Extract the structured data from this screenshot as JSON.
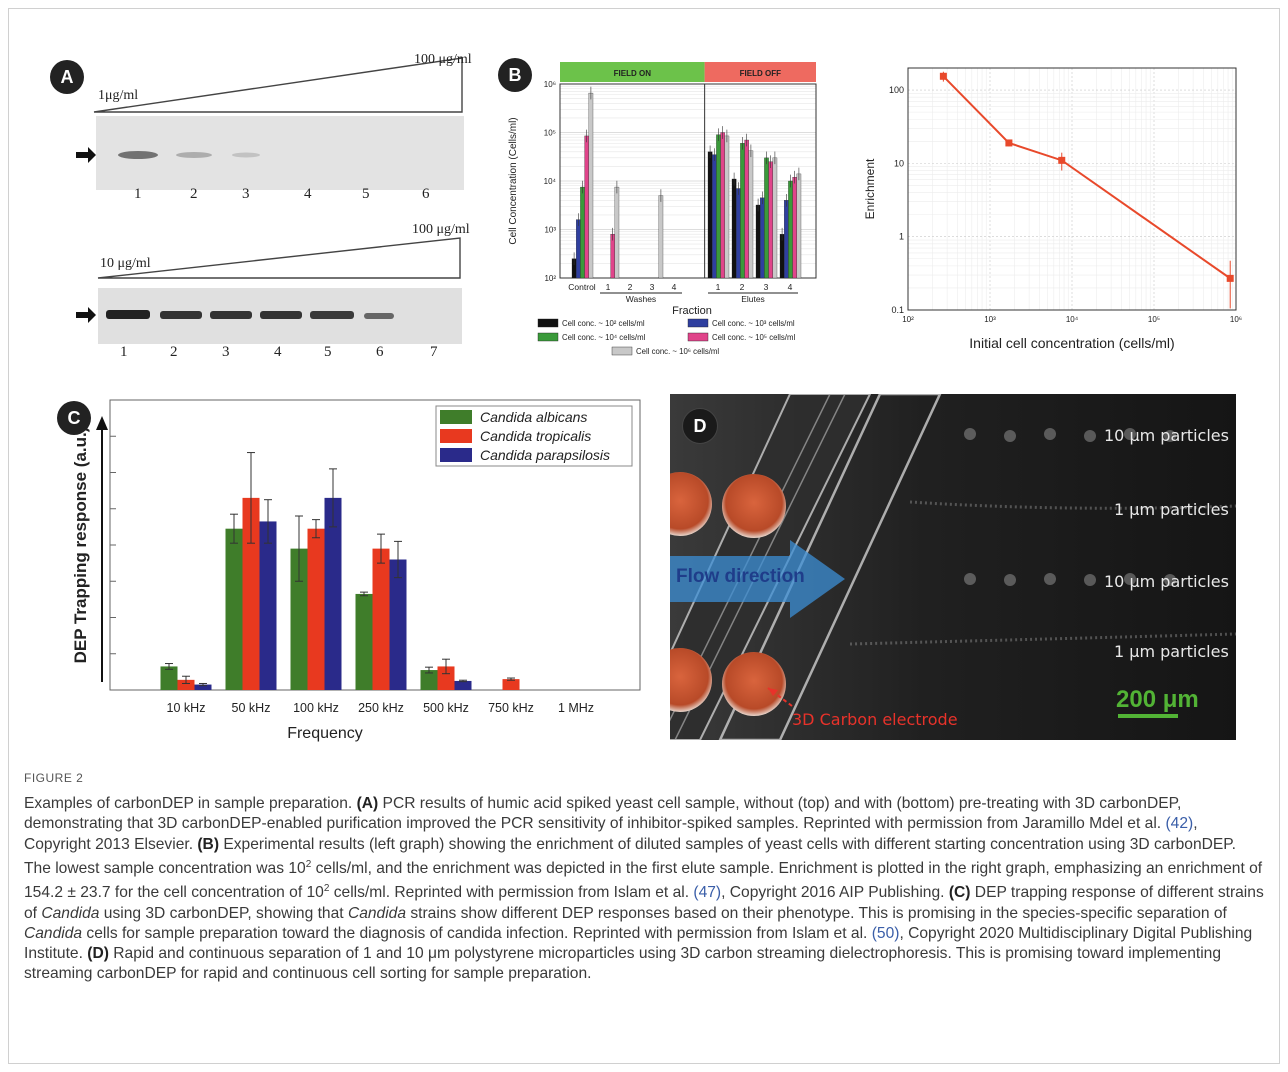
{
  "panelA": {
    "badge": "A",
    "top_low": "1μg/ml",
    "top_high": "100 μg/ml",
    "top_lanes": [
      "1",
      "2",
      "3",
      "4",
      "5",
      "6"
    ],
    "bottom_low": "10 μg/ml",
    "bottom_high": "100 μg/ml",
    "bottom_lanes": [
      "1",
      "2",
      "3",
      "4",
      "5",
      "6",
      "7"
    ]
  },
  "panelB": {
    "badge": "B",
    "field_on": "FIELD ON",
    "field_off": "FIELD OFF",
    "ylabel": "Cell Concentration (Cells/ml)",
    "xlabel": "Fraction",
    "group_washes": "Washes",
    "group_elutes": "Elutes",
    "control_label": "Control",
    "legend": [
      "Cell conc. ~ 10² cells/ml",
      "Cell conc. ~ 10³ cells/ml",
      "Cell conc. ~ 10⁴ cells/ml",
      "Cell conc. ~ 10⁵ cells/ml",
      "Cell conc. ~ 10⁶ cells/ml"
    ]
  },
  "panelD": {
    "badge": "D",
    "labels": [
      "10 μm particles",
      "1 μm particles",
      "10 μm particles",
      "1 μm particles"
    ],
    "flow": "Flow direction",
    "scale": "200 μm",
    "electrode": "3D Carbon electrode"
  },
  "chart_data": [
    {
      "id": "B-left",
      "type": "bar",
      "yscale": "log",
      "ylim": [
        100,
        1000000
      ],
      "yticks": [
        "10²",
        "10³",
        "10⁴",
        "10⁵",
        "10⁶"
      ],
      "categories": [
        "Control",
        "1",
        "2",
        "3",
        "4",
        "1",
        "2",
        "3",
        "4"
      ],
      "series": [
        {
          "values": [
            250,
            0,
            0,
            0,
            0,
            40000,
            11000,
            3200,
            800
          ],
          "color": "#111111"
        },
        {
          "values": [
            1600,
            0,
            0,
            0,
            0,
            35000,
            7000,
            4500,
            4000
          ],
          "color": "#2f3f9f"
        },
        {
          "values": [
            7500,
            0,
            0,
            0,
            0,
            90000,
            60000,
            30000,
            10000
          ],
          "color": "#3a9a3a"
        },
        {
          "values": [
            85000,
            800,
            0,
            0,
            0,
            100000,
            70000,
            25000,
            12000
          ],
          "color": "#e0448a"
        },
        {
          "values": [
            650000,
            7500,
            0,
            5000,
            0,
            85000,
            42000,
            30000,
            14000
          ],
          "color": "#c8c8c8"
        }
      ]
    },
    {
      "id": "B-right",
      "type": "line",
      "xscale": "log",
      "yscale": "log",
      "xlim": [
        100,
        1000000
      ],
      "ylim": [
        0.1,
        200
      ],
      "xticks": [
        "10²",
        "10³",
        "10⁴",
        "10⁵",
        "10⁶"
      ],
      "yticks": [
        "0.1",
        "1",
        "10",
        "100"
      ],
      "xlabel": "Initial cell concentration (cells/ml)",
      "ylabel": "Enrichment",
      "points": [
        {
          "x": 270,
          "y": 154.2,
          "err": 23.7
        },
        {
          "x": 1700,
          "y": 19,
          "err": 2
        },
        {
          "x": 7500,
          "y": 11,
          "err": 3
        },
        {
          "x": 850000,
          "y": 0.27,
          "err": 0.2
        }
      ],
      "color": "#e8492b"
    },
    {
      "id": "C",
      "type": "bar",
      "badge": "C",
      "ylabel": "DEP Trapping response (a.u.)",
      "xlabel": "Frequency",
      "categories": [
        "10 kHz",
        "50 kHz",
        "100 kHz",
        "250 kHz",
        "500 kHz",
        "750 kHz",
        "1 MHz"
      ],
      "ylim": [
        0,
        8
      ],
      "series": [
        {
          "name": "Candida albicans",
          "color": "#3f7d2a",
          "values": [
            0.65,
            4.45,
            3.9,
            2.65,
            0.55,
            0,
            0
          ],
          "err": [
            0.08,
            0.4,
            0.9,
            0.05,
            0.08,
            0,
            0
          ]
        },
        {
          "name": "Candida tropicalis",
          "color": "#e8391f",
          "values": [
            0.28,
            5.3,
            4.45,
            3.9,
            0.65,
            0.3,
            0
          ],
          "err": [
            0.1,
            1.25,
            0.25,
            0.4,
            0.2,
            0.03,
            0
          ]
        },
        {
          "name": "Candida parapsilosis",
          "color": "#2a2a8a",
          "values": [
            0.15,
            4.65,
            5.3,
            3.6,
            0.25,
            0,
            0
          ],
          "err": [
            0.03,
            0.6,
            0.8,
            0.5,
            0.02,
            0,
            0
          ]
        }
      ]
    }
  ],
  "caption": {
    "label": "FIGURE 2",
    "p1": "Examples of carbonDEP in sample preparation. ",
    "a_tag": "(A)",
    "a_text": " PCR results of humic acid spiked yeast cell sample, without (top) and with (bottom) pre-treating with 3D carbonDEP, demonstrating that 3D carbonDEP-enabled purification improved the PCR sensitivity of inhibitor-spiked samples. Reprinted with permission from Jaramillo Mdel et al. ",
    "a_ref": "(42)",
    "a_tail": ", Copyright 2013 Elsevier. ",
    "b_tag": "(B)",
    "b_text1": " Experimental results (left graph) showing the enrichment of diluted samples of yeast cells with different starting concentration using 3D carbonDEP. The lowest sample concentration was 10",
    "b_sup1": "2",
    "b_text2": " cells/ml, and the enrichment was depicted in the first elute sample. Enrichment is plotted in the right graph, emphasizing an enrichment of 154.2 ± 23.7 for the cell concentration of 10",
    "b_sup2": "2",
    "b_text3": " cells/ml. Reprinted with permission from Islam et al. ",
    "b_ref": "(47)",
    "b_tail": ", Copyright 2016 AIP Publishing. ",
    "c_tag": "(C)",
    "c_text1": " DEP trapping response of different strains of ",
    "c_it1": "Candida",
    "c_text2": " using 3D carbonDEP, showing that ",
    "c_it2": "Candida",
    "c_text3": " strains show different DEP responses based on their phenotype. This is promising in the species-specific separation of ",
    "c_it3": "Candida",
    "c_text4": " cells for sample preparation toward the diagnosis of candida infection. Reprinted with permission from Islam et al. ",
    "c_ref": "(50)",
    "c_tail": ", Copyright 2020 Multidisciplinary Digital Publishing Institute. ",
    "d_tag": "(D)",
    "d_text": " Rapid and continuous separation of 1 and 10 μm polystyrene microparticles using 3D carbon streaming dielectrophoresis. This is promising toward implementing streaming carbonDEP for rapid and continuous cell sorting for sample preparation."
  }
}
